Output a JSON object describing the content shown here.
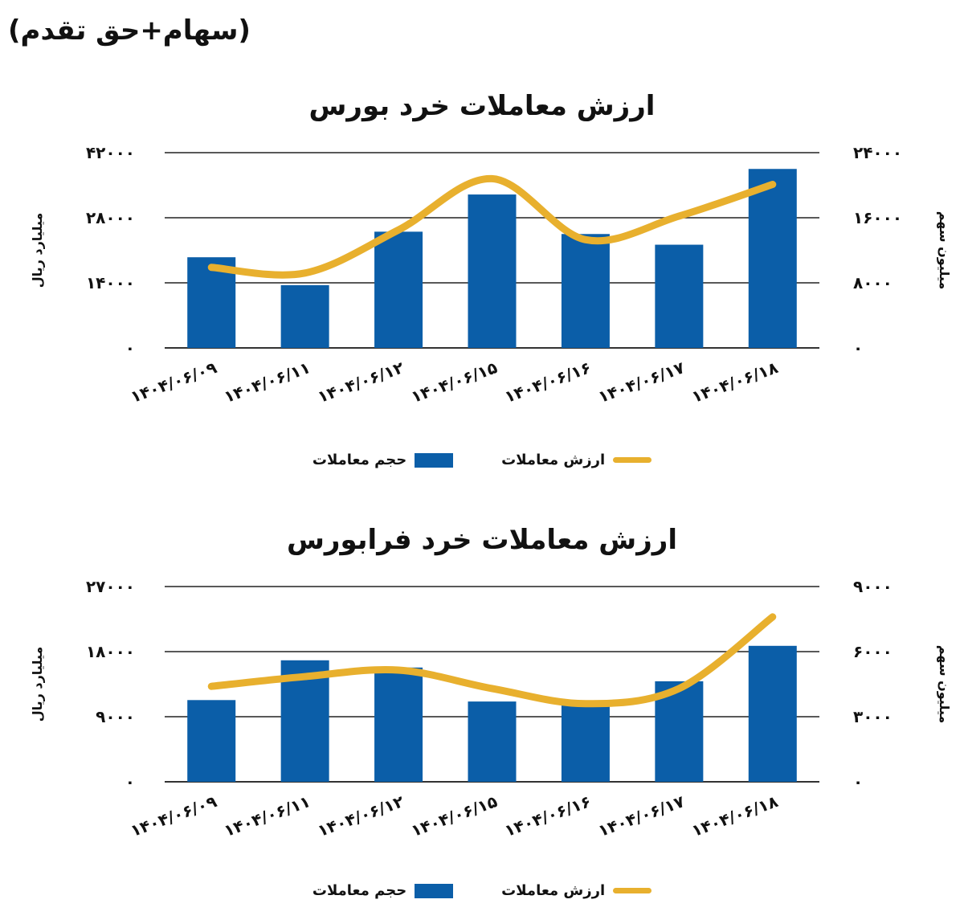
{
  "header": "(سهام+حق تقدم)",
  "colors": {
    "bar": "#0b5ea8",
    "line": "#e8b02e",
    "grid": "#222222"
  },
  "legend": {
    "bar_label": "حجم معاملات",
    "line_label": "ارزش معاملات"
  },
  "chart_data": [
    {
      "type": "bar+line",
      "title": "ارزش معاملات خرد بورس",
      "categories": [
        "1404/06/09",
        "1404/06/11",
        "1404/06/12",
        "1404/06/15",
        "1404/06/16",
        "1404/06/17",
        "1404/06/18"
      ],
      "category_labels": [
        "۱۴۰۴/۰۶/۰۹",
        "۱۴۰۴/۰۶/۱۱",
        "۱۴۰۴/۰۶/۱۲",
        "۱۴۰۴/۰۶/۱۵",
        "۱۴۰۴/۰۶/۱۶",
        "۱۴۰۴/۰۶/۱۷",
        "۱۴۰۴/۰۶/۱۸"
      ],
      "series": [
        {
          "name": "حجم معاملات",
          "axis": "left",
          "kind": "bar",
          "values": [
            19500,
            13500,
            25000,
            33000,
            24500,
            22200,
            38500
          ]
        },
        {
          "name": "ارزش معاملات",
          "axis": "right",
          "kind": "line",
          "values": [
            9900,
            9200,
            14500,
            20800,
            13300,
            16200,
            20100
          ]
        }
      ],
      "left_axis": {
        "label": "میلیارد ریال",
        "ticks": [
          "۰",
          "۱۴۰۰۰",
          "۲۸۰۰۰",
          "۴۲۰۰۰"
        ],
        "range": [
          0,
          42000
        ]
      },
      "right_axis": {
        "label": "میلیون سهم",
        "ticks": [
          "۰",
          "۸۰۰۰",
          "۱۶۰۰۰",
          "۲۴۰۰۰"
        ],
        "range": [
          0,
          24000
        ]
      },
      "grid": true
    },
    {
      "type": "bar+line",
      "title": "ارزش معاملات خرد فرابورس",
      "categories": [
        "1404/06/09",
        "1404/06/11",
        "1404/06/12",
        "1404/06/15",
        "1404/06/16",
        "1404/06/17",
        "1404/06/18"
      ],
      "category_labels": [
        "۱۴۰۴/۰۶/۰۹",
        "۱۴۰۴/۰۶/۱۱",
        "۱۴۰۴/۰۶/۱۲",
        "۱۴۰۴/۰۶/۱۵",
        "۱۴۰۴/۰۶/۱۶",
        "۱۴۰۴/۰۶/۱۷",
        "۱۴۰۴/۰۶/۱۸"
      ],
      "series": [
        {
          "name": "حجم معاملات",
          "axis": "left",
          "kind": "bar",
          "values": [
            11300,
            16800,
            15800,
            11100,
            10600,
            13900,
            18800
          ]
        },
        {
          "name": "ارزش معاملات",
          "axis": "right",
          "kind": "line",
          "values": [
            4400,
            4850,
            5150,
            4300,
            3600,
            4300,
            7600
          ]
        }
      ],
      "left_axis": {
        "label": "میلیارد ریال",
        "ticks": [
          "۰",
          "۹۰۰۰",
          "۱۸۰۰۰",
          "۲۷۰۰۰"
        ],
        "range": [
          0,
          27000
        ]
      },
      "right_axis": {
        "label": "میلیون سهم",
        "ticks": [
          "۰",
          "۳۰۰۰",
          "۶۰۰۰",
          "۹۰۰۰"
        ],
        "range": [
          0,
          9000
        ]
      },
      "grid": true
    }
  ]
}
